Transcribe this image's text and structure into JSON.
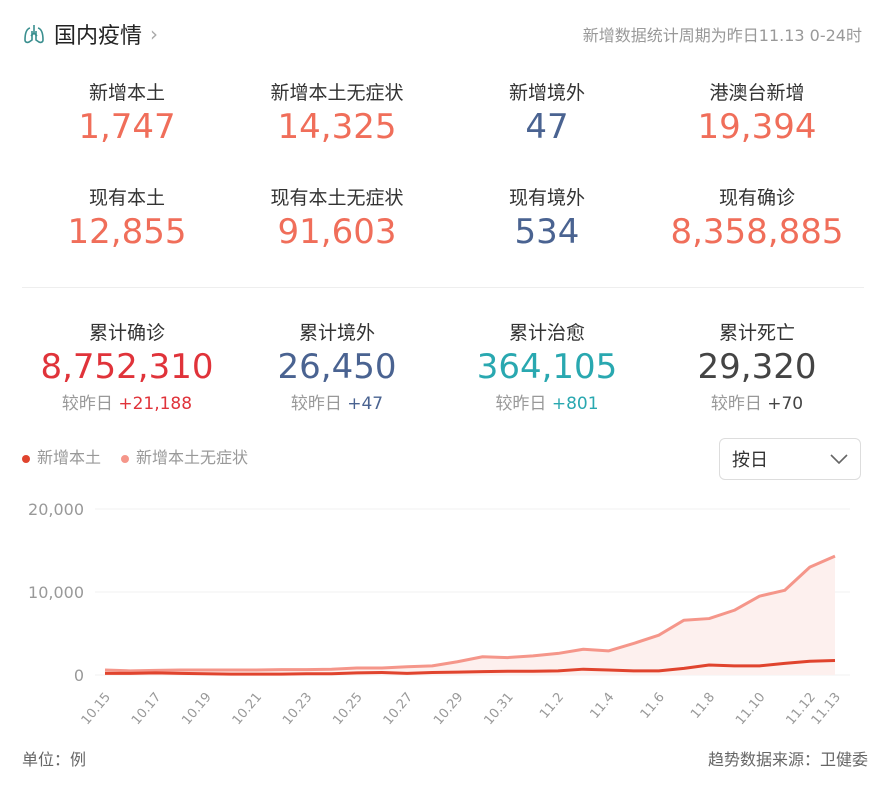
{
  "header": {
    "title": "国内疫情",
    "note": "新增数据统计周期为昨日11.13 0-24时",
    "icon": "lungs-icon"
  },
  "stats_new": [
    {
      "label": "新增本土",
      "value": "1,747",
      "color": "#f06e5a"
    },
    {
      "label": "新增本土无症状",
      "value": "14,325",
      "color": "#f06e5a"
    },
    {
      "label": "新增境外",
      "value": "47",
      "color": "#4a6391"
    },
    {
      "label": "港澳台新增",
      "value": "19,394",
      "color": "#f06e5a"
    }
  ],
  "stats_current": [
    {
      "label": "现有本土",
      "value": "12,855",
      "color": "#f06e5a"
    },
    {
      "label": "现有本土无症状",
      "value": "91,603",
      "color": "#f06e5a"
    },
    {
      "label": "现有境外",
      "value": "534",
      "color": "#4a6391"
    },
    {
      "label": "现有确诊",
      "value": "8,358,885",
      "color": "#f06e5a"
    }
  ],
  "stats_total": [
    {
      "label": "累计确诊",
      "value": "8,752,310",
      "color": "#e0333a",
      "sub_label": "较昨日",
      "delta": "+21,188",
      "delta_color": "#e0333a"
    },
    {
      "label": "累计境外",
      "value": "26,450",
      "color": "#4a6391",
      "sub_label": "较昨日",
      "delta": "+47",
      "delta_color": "#4a6391"
    },
    {
      "label": "累计治愈",
      "value": "364,105",
      "color": "#29a8b0",
      "sub_label": "较昨日",
      "delta": "+801",
      "delta_color": "#29a8b0"
    },
    {
      "label": "累计死亡",
      "value": "29,320",
      "color": "#444444",
      "sub_label": "较昨日",
      "delta": "+70",
      "delta_color": "#444444"
    }
  ],
  "selector": {
    "value": "按日"
  },
  "footer": {
    "unit": "单位：例",
    "source": "趋势数据来源：卫健委"
  },
  "chart_data": {
    "type": "line",
    "x": [
      "10.15",
      "10.16",
      "10.17",
      "10.18",
      "10.19",
      "10.20",
      "10.21",
      "10.22",
      "10.23",
      "10.24",
      "10.25",
      "10.26",
      "10.27",
      "10.28",
      "10.29",
      "10.30",
      "10.31",
      "11.1",
      "11.2",
      "11.3",
      "11.4",
      "11.5",
      "11.6",
      "11.7",
      "11.8",
      "11.9",
      "11.10",
      "11.11",
      "11.12",
      "11.13"
    ],
    "tick_labels": [
      "10.15",
      "10.17",
      "10.19",
      "10.21",
      "10.23",
      "10.25",
      "10.27",
      "10.29",
      "10.31",
      "11.2",
      "11.4",
      "11.6",
      "11.8",
      "11.10",
      "11.12",
      "11.13"
    ],
    "ylim": [
      0,
      20000
    ],
    "yticks": [
      "0",
      "10,000",
      "20,000"
    ],
    "series": [
      {
        "name": "新增本土",
        "color": "#e0442e",
        "values": [
          200,
          200,
          250,
          200,
          150,
          100,
          100,
          100,
          150,
          150,
          250,
          300,
          200,
          300,
          350,
          400,
          450,
          450,
          500,
          700,
          600,
          500,
          500,
          800,
          1200,
          1100,
          1100,
          1400,
          1650,
          1747
        ]
      },
      {
        "name": "新增本土无症状",
        "color": "#f5968a",
        "values": [
          600,
          500,
          550,
          600,
          600,
          600,
          600,
          650,
          650,
          700,
          850,
          850,
          1000,
          1100,
          1600,
          2200,
          2100,
          2300,
          2600,
          3100,
          2900,
          3800,
          4800,
          6600,
          6800,
          7800,
          9500,
          10200,
          13000,
          14325
        ]
      }
    ]
  }
}
